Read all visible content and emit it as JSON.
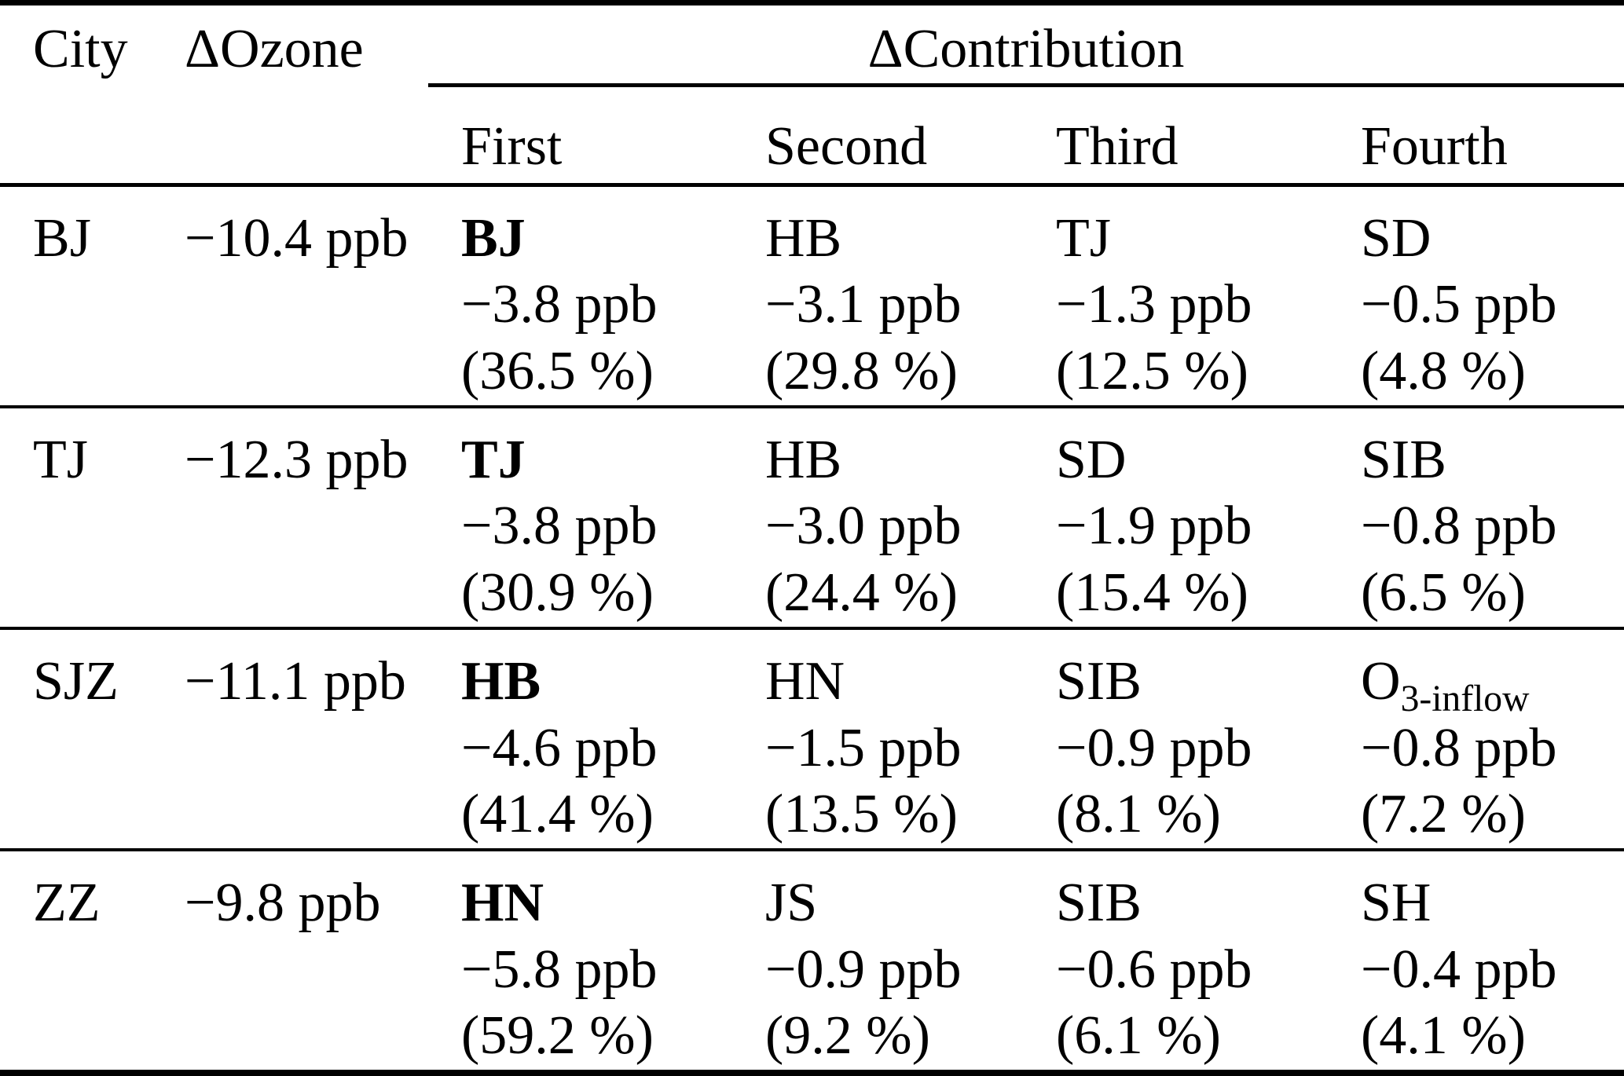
{
  "table": {
    "headers": {
      "city": "City",
      "ozone": "ΔOzone",
      "contribution": "ΔContribution",
      "ranks": [
        "First",
        "Second",
        "Third",
        "Fourth"
      ]
    },
    "rows": [
      {
        "city": "BJ",
        "ozone": "−10.4 ppb",
        "contributions": [
          {
            "region": "BJ",
            "value": "−3.8 ppb",
            "percent": "(36.5 %)"
          },
          {
            "region": "HB",
            "value": "−3.1 ppb",
            "percent": "(29.8 %)"
          },
          {
            "region": "TJ",
            "value": "−1.3 ppb",
            "percent": "(12.5 %)"
          },
          {
            "region": "SD",
            "value": "−0.5 ppb",
            "percent": "(4.8 %)"
          }
        ]
      },
      {
        "city": "TJ",
        "ozone": "−12.3 ppb",
        "contributions": [
          {
            "region": "TJ",
            "value": "−3.8 ppb",
            "percent": "(30.9 %)"
          },
          {
            "region": "HB",
            "value": "−3.0 ppb",
            "percent": "(24.4 %)"
          },
          {
            "region": "SD",
            "value": "−1.9 ppb",
            "percent": "(15.4 %)"
          },
          {
            "region": "SIB",
            "value": "−0.8 ppb",
            "percent": "(6.5 %)"
          }
        ]
      },
      {
        "city": "SJZ",
        "ozone": "−11.1 ppb",
        "contributions": [
          {
            "region": "HB",
            "value": "−4.6 ppb",
            "percent": "(41.4 %)"
          },
          {
            "region": "HN",
            "value": "−1.5 ppb",
            "percent": "(13.5 %)"
          },
          {
            "region": "SIB",
            "value": "−0.9 ppb",
            "percent": "(8.1 %)"
          },
          {
            "region": "O",
            "region_sub": "3-inflow",
            "value": "−0.8 ppb",
            "percent": "(7.2 %)"
          }
        ]
      },
      {
        "city": "ZZ",
        "ozone": "−9.8 ppb",
        "contributions": [
          {
            "region": "HN",
            "value": "−5.8 ppb",
            "percent": "(59.2 %)"
          },
          {
            "region": "JS",
            "value": "−0.9 ppb",
            "percent": "(9.2 %)"
          },
          {
            "region": "SIB",
            "value": "−0.6 ppb",
            "percent": "(6.1 %)"
          },
          {
            "region": "SH",
            "value": "−0.4 ppb",
            "percent": "(4.1 %)"
          }
        ]
      }
    ]
  }
}
